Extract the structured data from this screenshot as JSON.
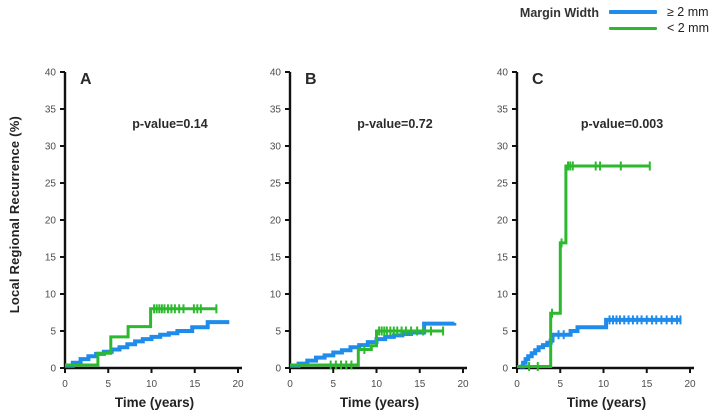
{
  "figure": {
    "legend": {
      "title": "Margin Width",
      "entries": [
        {
          "label": "≥ 2 mm",
          "color": "#1f8ceb"
        },
        {
          "label": "< 2 mm",
          "color": "#2db92d"
        }
      ]
    },
    "y_axis_title": "Local Regional Recurrence (%)",
    "x_axis_title": "Time (years)"
  },
  "chart_data": [
    {
      "type": "line",
      "panel_label": "A",
      "annotation": "p-value=0.14",
      "xlabel": "Time (years)",
      "ylabel": "Local Regional Recurrence (%)",
      "xlim": [
        0,
        20
      ],
      "ylim": [
        0,
        40
      ],
      "xticks": [
        0,
        5,
        10,
        15,
        20
      ],
      "yticks": [
        0,
        5,
        10,
        15,
        20,
        25,
        30,
        35,
        40
      ],
      "grid": false,
      "legend_position": "figure-top-right",
      "series": [
        {
          "name": "≥ 2 mm",
          "color": "#1f8ceb",
          "width": 4,
          "step_points": [
            [
              0,
              0.3
            ],
            [
              0.9,
              0.7
            ],
            [
              1.8,
              1.2
            ],
            [
              2.7,
              1.6
            ],
            [
              3.6,
              1.9
            ],
            [
              4.5,
              2.2
            ],
            [
              5.4,
              2.5
            ],
            [
              6.3,
              2.8
            ],
            [
              7.2,
              3.2
            ],
            [
              8.1,
              3.6
            ],
            [
              9,
              3.9
            ],
            [
              10,
              4.2
            ],
            [
              11,
              4.5
            ],
            [
              12,
              4.7
            ],
            [
              13,
              5.0
            ],
            [
              14.7,
              5.5
            ],
            [
              16.5,
              6.2
            ],
            [
              19,
              6.2
            ]
          ],
          "censors": []
        },
        {
          "name": "< 2 mm",
          "color": "#2db92d",
          "width": 3,
          "step_points": [
            [
              0,
              0.4
            ],
            [
              3.8,
              0.4
            ],
            [
              3.8,
              2.0
            ],
            [
              5.3,
              2.0
            ],
            [
              5.3,
              4.2
            ],
            [
              7.3,
              4.2
            ],
            [
              7.3,
              5.6
            ],
            [
              9.9,
              5.6
            ],
            [
              9.9,
              8.0
            ],
            [
              17.6,
              8.0
            ]
          ],
          "censors": [
            [
              10.3,
              8.0
            ],
            [
              10.6,
              8.0
            ],
            [
              10.9,
              8.0
            ],
            [
              11.2,
              8.0
            ],
            [
              11.5,
              8.0
            ],
            [
              11.9,
              8.0
            ],
            [
              12.3,
              8.0
            ],
            [
              12.7,
              8.0
            ],
            [
              13.2,
              8.0
            ],
            [
              13.7,
              8.0
            ],
            [
              14.9,
              8.0
            ],
            [
              15.3,
              8.0
            ],
            [
              15.7,
              8.0
            ],
            [
              17.5,
              8.0
            ]
          ]
        }
      ]
    },
    {
      "type": "line",
      "panel_label": "B",
      "annotation": "p-value=0.72",
      "xlabel": "Time (years)",
      "ylabel": "Local Regional Recurrence (%)",
      "xlim": [
        0,
        20
      ],
      "ylim": [
        0,
        40
      ],
      "xticks": [
        0,
        5,
        10,
        15,
        20
      ],
      "yticks": [
        0,
        5,
        10,
        15,
        20,
        25,
        30,
        35,
        40
      ],
      "grid": false,
      "legend_position": "figure-top-right",
      "series": [
        {
          "name": "≥ 2 mm",
          "color": "#1f8ceb",
          "width": 4,
          "step_points": [
            [
              0,
              0.3
            ],
            [
              1,
              0.6
            ],
            [
              2,
              1.0
            ],
            [
              3,
              1.4
            ],
            [
              4,
              1.7
            ],
            [
              5,
              2.1
            ],
            [
              6,
              2.4
            ],
            [
              7,
              2.8
            ],
            [
              8,
              3.1
            ],
            [
              9,
              3.5
            ],
            [
              10,
              3.9
            ],
            [
              11,
              4.2
            ],
            [
              12,
              4.4
            ],
            [
              13,
              4.6
            ],
            [
              14,
              4.8
            ],
            [
              15.5,
              6.0
            ],
            [
              19,
              6.1
            ]
          ],
          "censors": []
        },
        {
          "name": "< 2 mm",
          "color": "#2db92d",
          "width": 3,
          "step_points": [
            [
              0,
              0.4
            ],
            [
              7.9,
              0.4
            ],
            [
              7.9,
              2.5
            ],
            [
              9.4,
              2.5
            ],
            [
              9.4,
              3.0
            ],
            [
              10,
              3.0
            ],
            [
              10,
              5.0
            ],
            [
              17.8,
              5.0
            ]
          ],
          "censors": [
            [
              4.7,
              0.4
            ],
            [
              5.3,
              0.4
            ],
            [
              5.9,
              0.4
            ],
            [
              6.5,
              0.4
            ],
            [
              7.1,
              0.4
            ],
            [
              8.6,
              2.5
            ],
            [
              10.3,
              5.0
            ],
            [
              10.6,
              5.0
            ],
            [
              10.9,
              5.0
            ],
            [
              11.2,
              5.0
            ],
            [
              11.6,
              5.0
            ],
            [
              12.0,
              5.0
            ],
            [
              12.4,
              5.0
            ],
            [
              12.9,
              5.0
            ],
            [
              13.4,
              5.0
            ],
            [
              14.0,
              5.0
            ],
            [
              14.7,
              5.0
            ],
            [
              15.4,
              5.0
            ],
            [
              16.3,
              5.0
            ],
            [
              17.7,
              5.0
            ]
          ]
        }
      ]
    },
    {
      "type": "line",
      "panel_label": "C",
      "annotation": "p-value=0.003",
      "xlabel": "Time (years)",
      "ylabel": "Local Regional Recurrence (%)",
      "xlim": [
        0,
        20
      ],
      "ylim": [
        0,
        40
      ],
      "xticks": [
        0,
        5,
        10,
        15,
        20
      ],
      "yticks": [
        0,
        5,
        10,
        15,
        20,
        25,
        30,
        35,
        40
      ],
      "grid": false,
      "legend_position": "figure-top-right",
      "series": [
        {
          "name": "≥ 2 mm",
          "color": "#1f8ceb",
          "width": 4,
          "step_points": [
            [
              0.3,
              0.2
            ],
            [
              0.7,
              0.7
            ],
            [
              1.0,
              1.2
            ],
            [
              1.3,
              1.6
            ],
            [
              1.7,
              2.0
            ],
            [
              2.1,
              2.4
            ],
            [
              2.5,
              2.8
            ],
            [
              3.0,
              3.1
            ],
            [
              3.5,
              3.4
            ],
            [
              3.9,
              3.7
            ],
            [
              4.1,
              4.5
            ],
            [
              6.2,
              5.0
            ],
            [
              7.0,
              5.5
            ],
            [
              10.3,
              6.5
            ],
            [
              19,
              6.5
            ]
          ],
          "censors": [
            [
              4.8,
              4.5
            ],
            [
              5.4,
              4.5
            ],
            [
              10.7,
              6.5
            ],
            [
              11.1,
              6.5
            ],
            [
              11.5,
              6.5
            ],
            [
              11.9,
              6.5
            ],
            [
              12.4,
              6.5
            ],
            [
              12.9,
              6.5
            ],
            [
              13.4,
              6.5
            ],
            [
              13.9,
              6.5
            ],
            [
              14.4,
              6.5
            ],
            [
              15.0,
              6.5
            ],
            [
              15.6,
              6.5
            ],
            [
              16.1,
              6.5
            ],
            [
              16.7,
              6.5
            ],
            [
              17.3,
              6.5
            ],
            [
              17.9,
              6.5
            ],
            [
              18.5,
              6.5
            ],
            [
              18.9,
              6.5
            ]
          ]
        },
        {
          "name": "< 2 mm",
          "color": "#2db92d",
          "width": 3,
          "step_points": [
            [
              0,
              0.2
            ],
            [
              3.9,
              0.2
            ],
            [
              3.9,
              7.4
            ],
            [
              5.0,
              7.4
            ],
            [
              5.0,
              16.9
            ],
            [
              5.65,
              16.9
            ],
            [
              5.65,
              27.3
            ],
            [
              15.4,
              27.3
            ]
          ],
          "censors": [
            [
              1.4,
              0.2
            ],
            [
              2.4,
              0.2
            ],
            [
              4.05,
              7.4
            ],
            [
              5.15,
              16.9
            ],
            [
              5.9,
              27.3
            ],
            [
              6.15,
              27.3
            ],
            [
              6.45,
              27.3
            ],
            [
              9.1,
              27.3
            ],
            [
              9.6,
              27.3
            ],
            [
              12.0,
              27.3
            ],
            [
              15.35,
              27.3
            ]
          ]
        }
      ]
    }
  ]
}
